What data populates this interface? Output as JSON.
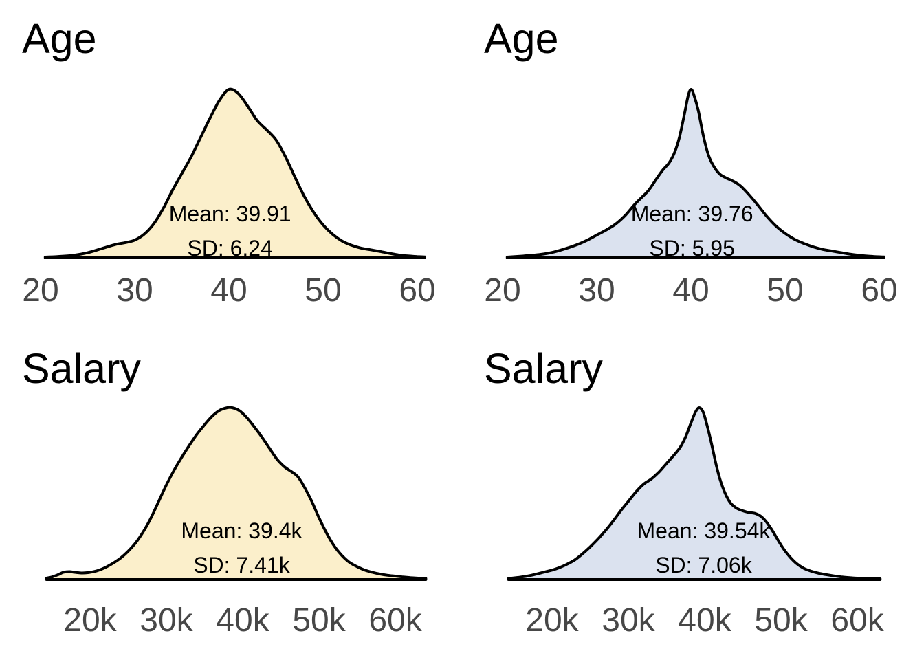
{
  "figure": {
    "background": "#ffffff",
    "text_color": "#000000",
    "tick_color": "#474747"
  },
  "chart_data": [
    {
      "type": "area",
      "position": "top-left",
      "title": "Age",
      "fill_color": "#FBEFCB",
      "line_color": "#000000",
      "annotation": {
        "mean_label": "Mean: 39.91",
        "sd_label": "SD: 6.24"
      },
      "mean": 39.91,
      "sd": 6.24,
      "xlim": [
        20,
        60
      ],
      "xticks": [
        20,
        30,
        40,
        50,
        60
      ],
      "xtick_labels": [
        "20",
        "30",
        "40",
        "50",
        "60"
      ],
      "ylabel": "density (unlabeled)",
      "grid": false,
      "legend": "none",
      "density": {
        "x": [
          20.5,
          22,
          23.5,
          25,
          26.5,
          28,
          29,
          30,
          31,
          32,
          33,
          34,
          35,
          36,
          37,
          38,
          39,
          40,
          41,
          42,
          43,
          44,
          45,
          46,
          47,
          48,
          49,
          50,
          51,
          52,
          53,
          54,
          55,
          56,
          57,
          58,
          59,
          60,
          60.8
        ],
        "y": [
          0.004,
          0.008,
          0.015,
          0.03,
          0.055,
          0.08,
          0.09,
          0.105,
          0.14,
          0.2,
          0.29,
          0.4,
          0.5,
          0.6,
          0.715,
          0.83,
          0.935,
          1.0,
          0.975,
          0.9,
          0.815,
          0.76,
          0.7,
          0.6,
          0.48,
          0.365,
          0.27,
          0.195,
          0.14,
          0.1,
          0.075,
          0.058,
          0.048,
          0.038,
          0.027,
          0.017,
          0.011,
          0.007,
          0.005
        ]
      }
    },
    {
      "type": "area",
      "position": "top-right",
      "title": "Age",
      "fill_color": "#DBE2EF",
      "line_color": "#000000",
      "annotation": {
        "mean_label": "Mean: 39.76",
        "sd_label": "SD: 5.95"
      },
      "mean": 39.76,
      "sd": 5.95,
      "xlim": [
        20,
        60
      ],
      "xticks": [
        20,
        30,
        40,
        50,
        60
      ],
      "xtick_labels": [
        "20",
        "30",
        "40",
        "50",
        "60"
      ],
      "ylabel": "density (unlabeled)",
      "grid": false,
      "legend": "none",
      "density": {
        "x": [
          20.5,
          22,
          24,
          25.5,
          27,
          28,
          29,
          30,
          31,
          32,
          33,
          34,
          34.8,
          35.5,
          36.3,
          37,
          37.7,
          38.3,
          38.8,
          39.3,
          39.7,
          40,
          40.3,
          40.8,
          41.3,
          41.8,
          42.3,
          43,
          43.7,
          44.3,
          44.8,
          45.3,
          46,
          47,
          48,
          49,
          50,
          51,
          52,
          53,
          54,
          55,
          56,
          57,
          58,
          59,
          60,
          60.5
        ],
        "y": [
          0.004,
          0.01,
          0.02,
          0.035,
          0.06,
          0.08,
          0.105,
          0.135,
          0.165,
          0.2,
          0.25,
          0.315,
          0.36,
          0.4,
          0.465,
          0.52,
          0.565,
          0.63,
          0.72,
          0.85,
          0.96,
          1.0,
          0.97,
          0.87,
          0.73,
          0.62,
          0.555,
          0.5,
          0.475,
          0.46,
          0.445,
          0.425,
          0.385,
          0.32,
          0.25,
          0.19,
          0.145,
          0.11,
          0.085,
          0.065,
          0.05,
          0.04,
          0.03,
          0.021,
          0.014,
          0.009,
          0.006,
          0.005
        ]
      }
    },
    {
      "type": "area",
      "position": "bottom-left",
      "title": "Salary",
      "fill_color": "#FBEFCB",
      "line_color": "#000000",
      "annotation": {
        "mean_label": "Mean: 39.4k",
        "sd_label": "SD: 7.41k"
      },
      "mean": 39.4,
      "sd": 7.41,
      "unit": "k",
      "xlim": [
        20,
        60
      ],
      "xticks": [
        20,
        30,
        40,
        50,
        60
      ],
      "xtick_labels": [
        "20k",
        "30k",
        "40k",
        "50k",
        "60k"
      ],
      "ylabel": "density (unlabeled)",
      "grid": false,
      "legend": "none",
      "density": {
        "x": [
          14.3,
          15,
          15.8,
          16.5,
          17.3,
          18,
          19,
          20,
          21,
          22,
          23,
          24,
          25,
          26,
          27,
          28,
          29,
          30,
          31,
          32,
          33,
          34,
          35,
          36,
          37,
          38,
          38.6,
          39.5,
          40.5,
          41.5,
          42.5,
          43.5,
          44.5,
          45.5,
          46.5,
          47.2,
          48,
          49,
          50,
          51,
          52,
          53,
          54,
          55,
          56,
          57,
          58,
          59,
          60,
          61,
          62,
          63,
          64
        ],
        "y": [
          0.008,
          0.015,
          0.028,
          0.042,
          0.046,
          0.042,
          0.038,
          0.042,
          0.052,
          0.07,
          0.095,
          0.125,
          0.165,
          0.215,
          0.28,
          0.36,
          0.455,
          0.55,
          0.635,
          0.71,
          0.78,
          0.845,
          0.9,
          0.95,
          0.985,
          1.0,
          1.0,
          0.985,
          0.945,
          0.89,
          0.83,
          0.765,
          0.7,
          0.655,
          0.625,
          0.6,
          0.545,
          0.46,
          0.36,
          0.27,
          0.195,
          0.14,
          0.1,
          0.075,
          0.055,
          0.042,
          0.032,
          0.025,
          0.02,
          0.015,
          0.011,
          0.008,
          0.006
        ]
      }
    },
    {
      "type": "area",
      "position": "bottom-right",
      "title": "Salary",
      "fill_color": "#DBE2EF",
      "line_color": "#000000",
      "annotation": {
        "mean_label": "Mean: 39.54k",
        "sd_label": "SD: 7.06k"
      },
      "mean": 39.54,
      "sd": 7.06,
      "unit": "k",
      "xlim": [
        20,
        60
      ],
      "xticks": [
        20,
        30,
        40,
        50,
        60
      ],
      "xtick_labels": [
        "20k",
        "30k",
        "40k",
        "50k",
        "60k"
      ],
      "ylabel": "density (unlabeled)",
      "grid": false,
      "legend": "none",
      "density": {
        "x": [
          14.3,
          15.5,
          17,
          18.5,
          20,
          21,
          22,
          23,
          24,
          25,
          26,
          27,
          28,
          29,
          30,
          31,
          32,
          33,
          34,
          35,
          36,
          36.8,
          37.5,
          38.2,
          38.8,
          39.3,
          39.8,
          40.3,
          40.9,
          41.5,
          42,
          42.7,
          43.4,
          44.2,
          45,
          45.8,
          46.6,
          47.3,
          48,
          48.8,
          49.6,
          50.4,
          51.2,
          52,
          53,
          54,
          55,
          56,
          57,
          58,
          59,
          60,
          61.5,
          63
        ],
        "y": [
          0.006,
          0.012,
          0.022,
          0.038,
          0.055,
          0.07,
          0.09,
          0.115,
          0.15,
          0.19,
          0.235,
          0.285,
          0.34,
          0.4,
          0.455,
          0.51,
          0.555,
          0.585,
          0.625,
          0.675,
          0.725,
          0.77,
          0.83,
          0.91,
          0.975,
          1.0,
          0.975,
          0.9,
          0.79,
          0.67,
          0.585,
          0.5,
          0.445,
          0.415,
          0.4,
          0.39,
          0.385,
          0.37,
          0.34,
          0.29,
          0.23,
          0.175,
          0.13,
          0.095,
          0.065,
          0.048,
          0.036,
          0.028,
          0.021,
          0.015,
          0.011,
          0.008,
          0.005,
          0.004
        ]
      }
    }
  ]
}
